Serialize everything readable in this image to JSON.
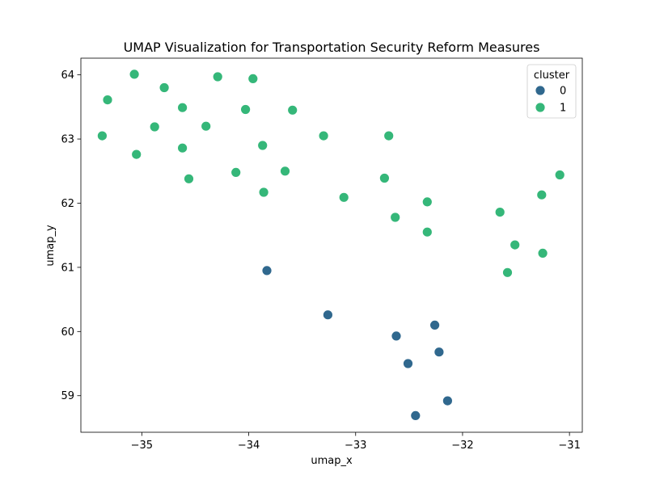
{
  "chart_data": {
    "type": "scatter",
    "title": "UMAP Visualization for Transportation Security Reform Measures",
    "xlabel": "umap_x",
    "ylabel": "umap_y",
    "xlim": [
      -35.57,
      -30.88
    ],
    "ylim": [
      58.43,
      64.26
    ],
    "xticks": [
      -35,
      -34,
      -33,
      -32,
      -31
    ],
    "xtick_labels": [
      "−35",
      "−34",
      "−33",
      "−32",
      "−31"
    ],
    "yticks": [
      59,
      60,
      61,
      62,
      63,
      64
    ],
    "ytick_labels": [
      "59",
      "60",
      "61",
      "62",
      "63",
      "64"
    ],
    "grid": false,
    "legend": {
      "title": "cluster",
      "placement": "top-right",
      "entries": [
        {
          "label": "0",
          "color": "#30688e"
        },
        {
          "label": "1",
          "color": "#35b779"
        }
      ]
    },
    "series": [
      {
        "name": "0",
        "color": "#30688e",
        "points": [
          [
            -33.83,
            60.95
          ],
          [
            -33.26,
            60.26
          ],
          [
            -32.62,
            59.93
          ],
          [
            -32.26,
            60.1
          ],
          [
            -32.51,
            59.5
          ],
          [
            -32.22,
            59.68
          ],
          [
            -32.44,
            58.69
          ],
          [
            -32.14,
            58.92
          ]
        ]
      },
      {
        "name": "1",
        "color": "#35b779",
        "points": [
          [
            -35.07,
            64.01
          ],
          [
            -34.29,
            63.97
          ],
          [
            -33.96,
            63.94
          ],
          [
            -35.32,
            63.61
          ],
          [
            -34.79,
            63.8
          ],
          [
            -34.62,
            63.49
          ],
          [
            -34.03,
            63.46
          ],
          [
            -33.59,
            63.45
          ],
          [
            -35.37,
            63.05
          ],
          [
            -34.88,
            63.19
          ],
          [
            -34.4,
            63.2
          ],
          [
            -35.05,
            62.76
          ],
          [
            -34.62,
            62.86
          ],
          [
            -33.87,
            62.9
          ],
          [
            -33.3,
            63.05
          ],
          [
            -32.69,
            63.05
          ],
          [
            -34.56,
            62.38
          ],
          [
            -34.12,
            62.48
          ],
          [
            -33.66,
            62.5
          ],
          [
            -33.86,
            62.17
          ],
          [
            -33.11,
            62.09
          ],
          [
            -32.73,
            62.39
          ],
          [
            -32.33,
            62.02
          ],
          [
            -32.63,
            61.78
          ],
          [
            -32.33,
            61.55
          ],
          [
            -31.65,
            61.86
          ],
          [
            -31.26,
            62.13
          ],
          [
            -31.09,
            62.44
          ],
          [
            -31.51,
            61.35
          ],
          [
            -31.58,
            60.92
          ],
          [
            -31.25,
            61.22
          ]
        ]
      }
    ]
  }
}
